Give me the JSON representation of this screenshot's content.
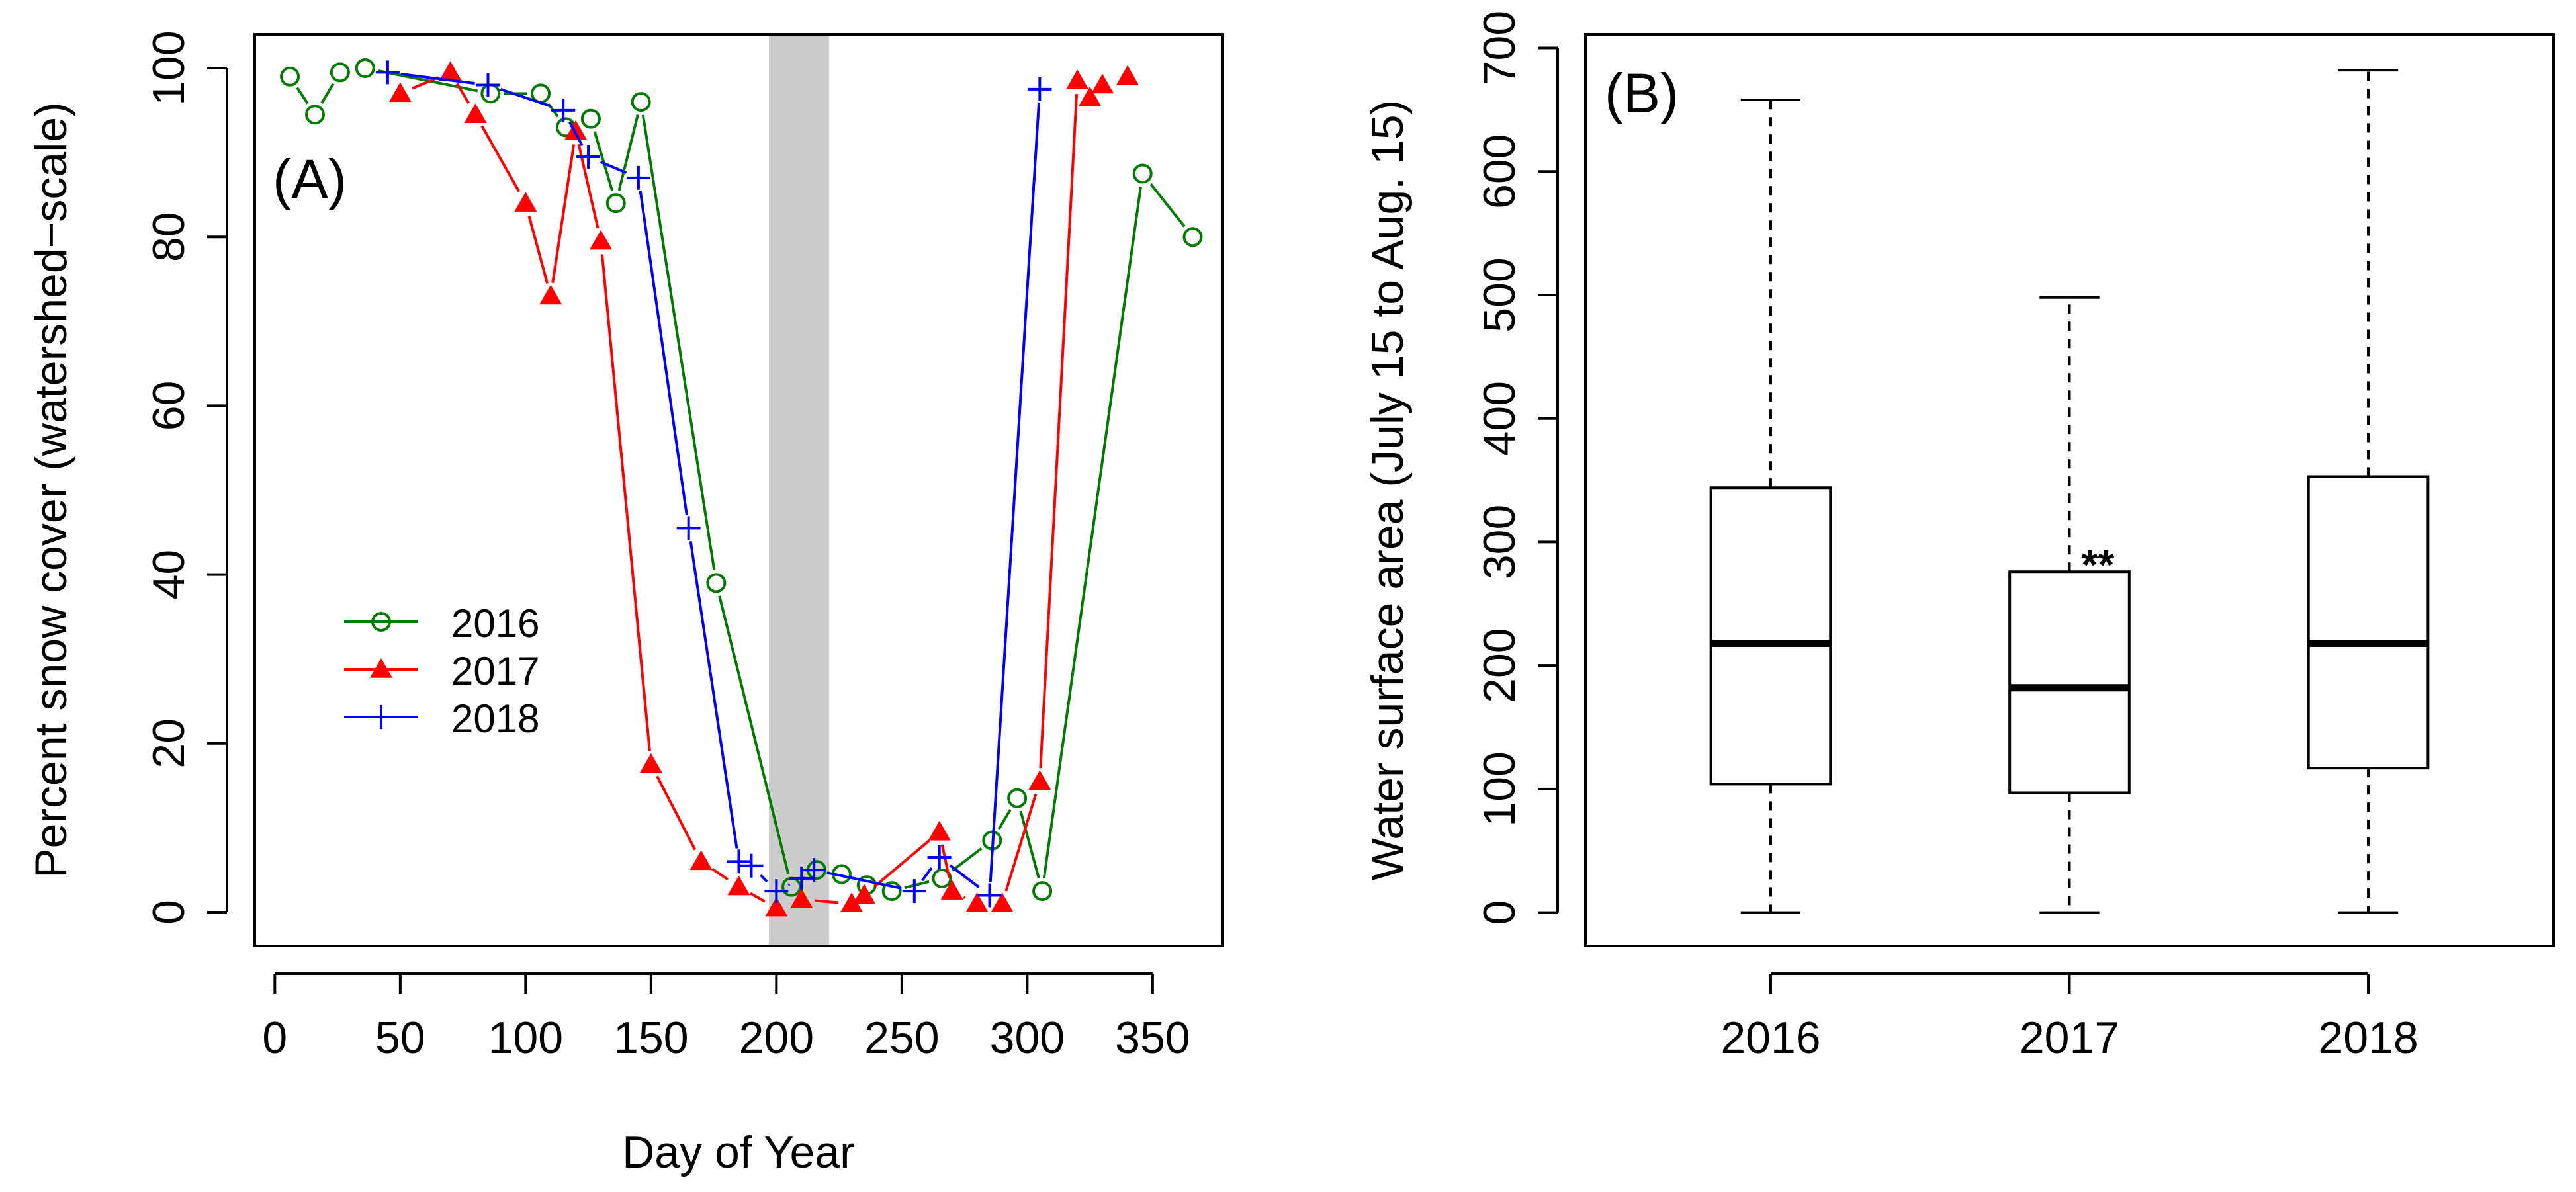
{
  "chart_data": [
    {
      "type": "line",
      "panel_label": "(A)",
      "xlabel": "Day of Year",
      "ylabel": "Percent snow cover (watershed−scale)",
      "xlim": [
        -8,
        378
      ],
      "ylim": [
        -4,
        104
      ],
      "xticks": [
        0,
        50,
        100,
        150,
        200,
        250,
        300,
        350
      ],
      "yticks": [
        0,
        20,
        40,
        60,
        80,
        100
      ],
      "shaded_band": {
        "x_start": 197,
        "x_end": 221,
        "color": "#cccccc"
      },
      "legend": {
        "position": "bottom-left",
        "entries": [
          "2016",
          "2017",
          "2018"
        ]
      },
      "series": [
        {
          "name": "2016",
          "color": "#007a00",
          "marker": "circle",
          "dash": "dashed",
          "x": [
            6,
            16,
            26,
            36,
            86,
            106,
            116,
            126,
            136,
            146,
            176,
            206,
            216,
            226,
            236,
            246,
            266,
            286,
            296,
            306,
            346,
            366
          ],
          "y": [
            99,
            94.5,
            99.5,
            100,
            97,
            97,
            93,
            94,
            84,
            96,
            39,
            3,
            5,
            4.5,
            3.2,
            2.5,
            4,
            8.5,
            13.5,
            2.5,
            87.5,
            80
          ]
        },
        {
          "name": "2017",
          "color": "#ff0000",
          "marker": "triangle",
          "dash": "dashed",
          "x": [
            50,
            70,
            80,
            100,
            110,
            120,
            130,
            150,
            170,
            185,
            200,
            210,
            230,
            235,
            265,
            270,
            280,
            290,
            305,
            320,
            325,
            330,
            340
          ],
          "y": [
            97,
            99.5,
            94.5,
            84,
            73,
            92.5,
            79.5,
            17.5,
            6,
            3,
            0.5,
            1.5,
            1,
            2,
            9.5,
            2.5,
            1,
            1,
            15.5,
            98.5,
            96.5,
            98,
            99
          ]
        },
        {
          "name": "2018",
          "color": "#0000ff",
          "marker": "plus",
          "dash": "solid",
          "x": [
            45,
            85,
            115,
            125,
            145,
            165,
            185,
            190,
            200,
            210,
            215,
            255,
            265,
            285,
            305
          ],
          "y": [
            99.5,
            98,
            95,
            89.5,
            87,
            45.5,
            6,
            5.5,
            2.5,
            4,
            5,
            2.5,
            6.5,
            2,
            97.5
          ]
        }
      ]
    },
    {
      "type": "box",
      "panel_label": "(B)",
      "xlabel": "",
      "ylabel": "Water surface area (July 15 to Aug. 15)",
      "ylim": [
        -27,
        711
      ],
      "yticks": [
        0,
        100,
        200,
        300,
        400,
        500,
        600,
        700
      ],
      "categories": [
        "2016",
        "2017",
        "2018"
      ],
      "boxes": [
        {
          "min": 0,
          "q1": 104,
          "median": 218,
          "q3": 344,
          "max": 658
        },
        {
          "min": 0,
          "q1": 97,
          "median": 182,
          "q3": 276,
          "max": 498
        },
        {
          "min": 0,
          "q1": 117,
          "median": 218,
          "q3": 353,
          "max": 682
        }
      ],
      "annotation": {
        "text": "**",
        "category": "2017",
        "y": 285
      }
    }
  ]
}
